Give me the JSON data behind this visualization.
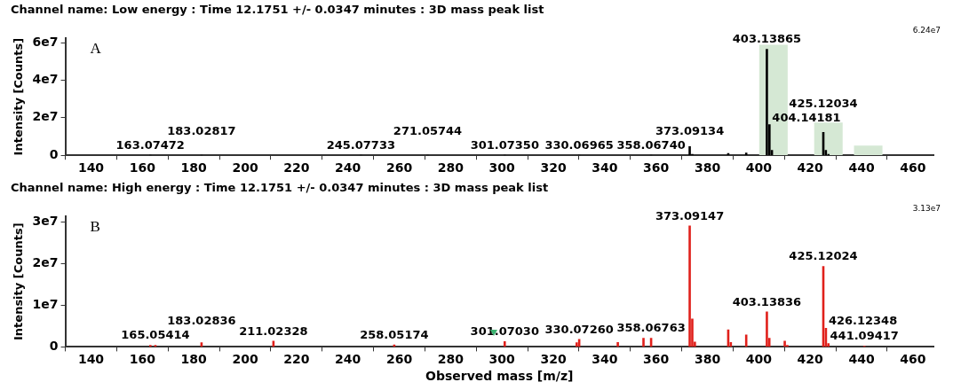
{
  "chart_data": [
    {
      "type": "bar",
      "title": "Channel name: Low energy : Time 12.1751 +/- 0.0347 minutes : 3D mass peak list",
      "ylabel": "Intensity [Counts]",
      "annotations": [
        "A",
        "6.24e7",
        {
          "text": "163.07472",
          "x": 163.07472,
          "y": 0
        },
        {
          "text": "183.02817",
          "x": 183.02817,
          "y": 0
        },
        {
          "text": "245.07733",
          "x": 245.07733,
          "y": 0
        },
        {
          "text": "271.05744",
          "x": 271.05744,
          "y": 0
        },
        {
          "text": "301.07350",
          "x": 301.0735,
          "y": 0
        },
        {
          "text": "330.06965",
          "x": 330.06965,
          "y": 0
        },
        {
          "text": "358.06740",
          "x": 358.0674,
          "y": 0
        },
        {
          "text": "373.09134",
          "x": 373.09134,
          "y": 4700000
        },
        {
          "text": "403.13865",
          "x": 403.13865,
          "y": 56500000
        },
        {
          "text": "404.14181",
          "x": 404.14181,
          "y": 16300000
        },
        {
          "text": "425.12034",
          "x": 425.12034,
          "y": 12200000
        }
      ],
      "xlim": [
        130,
        468
      ],
      "xticks": [
        140,
        160,
        180,
        200,
        220,
        240,
        260,
        280,
        300,
        320,
        340,
        360,
        380,
        400,
        420,
        440,
        460
      ],
      "ylim": [
        0,
        62400000
      ],
      "yticks": [
        {
          "value": 0,
          "label": "0"
        },
        {
          "value": 20000000,
          "label": "2e7"
        },
        {
          "value": 40000000,
          "label": "4e7"
        },
        {
          "value": 60000000,
          "label": "6e7"
        }
      ],
      "series": [
        {
          "color": "#d5e8d4",
          "x": [
            405.7,
            427.1,
            442.6
          ],
          "values": [
            58700000,
            17300000,
            5000000
          ]
        },
        {
          "color": "#000000",
          "x": [
            163.07472,
            183.02817,
            245.07733,
            271.05744,
            301.0735,
            330.06965,
            358.0674,
            373.09134,
            374.1,
            388.1,
            389.1,
            395.1,
            403.13865,
            404.14181,
            405.1,
            425.12034,
            426.1,
            427.1
          ],
          "values": [
            0,
            0,
            0,
            0,
            0,
            0,
            0,
            4700000,
            500000,
            1000000,
            null,
            1200000,
            56500000,
            16300000,
            2600000,
            12200000,
            2600000,
            500000
          ]
        }
      ]
    },
    {
      "type": "bar",
      "title": "Channel name: High energy : Time 12.1751 +/- 0.0347 minutes : 3D mass peak list",
      "xlabel": "Observed mass [m/z]",
      "ylabel": "Intensity [Counts]",
      "annotations": [
        "B",
        "3.13e7",
        {
          "text": "165.05414",
          "x": 165.05414,
          "y": 400000
        },
        {
          "text": "183.02836",
          "x": 183.02836,
          "y": 1000000
        },
        {
          "text": "211.02328",
          "x": 211.02328,
          "y": 1400000
        },
        {
          "text": "258.05174",
          "x": 258.05174,
          "y": 500000
        },
        {
          "text": "301.07030",
          "x": 301.0703,
          "y": 1300000
        },
        {
          "text": "330.07260",
          "x": 330.0726,
          "y": 1800000
        },
        {
          "text": "358.06763",
          "x": 358.06763,
          "y": 2100000
        },
        {
          "text": "373.09147",
          "x": 373.09147,
          "y": 29000000
        },
        {
          "text": "403.13836",
          "x": 403.13836,
          "y": 8400000
        },
        {
          "text": "425.12024",
          "x": 425.12024,
          "y": 19300000
        },
        {
          "text": "426.12348",
          "x": 426.12348,
          "y": 4500000
        },
        {
          "text": "441.09417",
          "x": 441.09417,
          "y": 200000
        }
      ],
      "xlim": [
        130,
        468
      ],
      "xticks": [
        140,
        160,
        180,
        200,
        220,
        240,
        260,
        280,
        300,
        320,
        340,
        360,
        380,
        400,
        420,
        440,
        460
      ],
      "ylim": [
        0,
        31300000
      ],
      "yticks": [
        {
          "value": 0,
          "label": "0"
        },
        {
          "value": 10000000,
          "label": "1e7"
        },
        {
          "value": 20000000,
          "label": "2e7"
        },
        {
          "value": 30000000,
          "label": "3e7"
        }
      ],
      "series": [
        {
          "color": "#e0201b",
          "x": [
            163.1,
            165.05414,
            183.02836,
            211.02328,
            258.05174,
            301.0703,
            329.1,
            330.0726,
            345.1,
            355.1,
            358.06763,
            373.09147,
            374.1,
            375.1,
            388.1,
            389.1,
            395.1,
            403.13836,
            404.1,
            410.1,
            411.1,
            425.12024,
            426.12348,
            427.1,
            441.09417
          ],
          "values": [
            400000,
            400000,
            1000000,
            1400000,
            500000,
            1300000,
            1000000,
            1800000,
            1100000,
            2100000,
            2100000,
            29000000,
            6700000,
            1200000,
            4100000,
            1100000,
            2900000,
            8400000,
            2100000,
            1400000,
            400000,
            19300000,
            4500000,
            800000,
            200000
          ]
        }
      ]
    }
  ]
}
